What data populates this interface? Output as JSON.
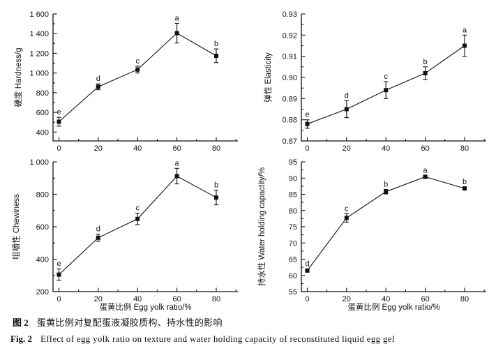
{
  "figure": {
    "caption_zh_label": "图 2",
    "caption_zh": "蛋黄比例对复配蛋液凝胶质构、持水性的影响",
    "caption_en_label": "Fig. 2",
    "caption_en": "Effect of egg yolk ratio on texture and water holding capacity of reconstituted liquid egg gel"
  },
  "chart_data": [
    {
      "id": "hardness",
      "type": "line",
      "title": "",
      "ylabel": "硬度 Hardness/g",
      "xlabel": "",
      "x": [
        0,
        20,
        40,
        60,
        80
      ],
      "values": [
        505,
        860,
        1035,
        1405,
        1175
      ],
      "errors": [
        45,
        30,
        35,
        100,
        70
      ],
      "point_labels": [
        "e",
        "d",
        "c",
        "a",
        "b"
      ],
      "xlim": [
        -3,
        91
      ],
      "ylim": [
        310,
        1600
      ],
      "xticks": [
        0,
        20,
        40,
        60,
        80
      ],
      "xticks_minor": [
        10,
        30,
        50,
        70,
        90
      ],
      "yticks": [
        400,
        600,
        800,
        1000,
        1200,
        1400,
        1600
      ],
      "ytick_labels": [
        "400",
        "600",
        "800",
        "1 000",
        "1 200",
        "1 400",
        "1 600"
      ],
      "yticks_minor": [
        500,
        700,
        900,
        1100,
        1300,
        1500
      ],
      "marker": "square",
      "color": "#111111",
      "grid": false,
      "legend": null
    },
    {
      "id": "elasticity",
      "type": "line",
      "title": "",
      "ylabel": "弹性 Elasticity",
      "xlabel": "",
      "x": [
        0,
        20,
        40,
        60,
        80
      ],
      "values": [
        0.878,
        0.885,
        0.894,
        0.902,
        0.915
      ],
      "errors": [
        0.002,
        0.004,
        0.004,
        0.003,
        0.005
      ],
      "point_labels": [
        "e",
        "d",
        "c",
        "b",
        "a"
      ],
      "xlim": [
        -3,
        91
      ],
      "ylim": [
        0.87,
        0.93
      ],
      "xticks": [
        0,
        20,
        40,
        60,
        80
      ],
      "xticks_minor": [
        10,
        30,
        50,
        70,
        90
      ],
      "yticks": [
        0.87,
        0.88,
        0.89,
        0.9,
        0.91,
        0.92,
        0.93
      ],
      "ytick_labels": [
        "0.87",
        "0.88",
        "0.89",
        "0.90",
        "0.91",
        "0.92",
        "0.93"
      ],
      "yticks_minor": [
        0.875,
        0.885,
        0.895,
        0.905,
        0.915,
        0.925
      ],
      "marker": "square",
      "color": "#111111",
      "grid": false,
      "legend": null
    },
    {
      "id": "chewiness",
      "type": "line",
      "title": "",
      "ylabel": "咀嚼性 Chewiness",
      "xlabel": "蛋黄比例 Egg yolk ratio/%",
      "x": [
        0,
        20,
        40,
        60,
        80
      ],
      "values": [
        305,
        532,
        648,
        912,
        780
      ],
      "errors": [
        35,
        22,
        35,
        48,
        45
      ],
      "point_labels": [
        "e",
        "d",
        "c",
        "a",
        "b"
      ],
      "xlim": [
        -3,
        91
      ],
      "ylim": [
        200,
        1000
      ],
      "xticks": [
        0,
        20,
        40,
        60,
        80
      ],
      "xticks_minor": [
        10,
        30,
        50,
        70,
        90
      ],
      "yticks": [
        200,
        400,
        600,
        800,
        1000
      ],
      "ytick_labels": [
        "200",
        "400",
        "600",
        "800",
        "1 000"
      ],
      "yticks_minor": [
        300,
        500,
        700,
        900
      ],
      "marker": "square",
      "color": "#111111",
      "grid": false,
      "legend": null
    },
    {
      "id": "water-holding-capacity",
      "type": "line",
      "title": "",
      "ylabel": "持水性 Water holding capactity/%",
      "xlabel": "蛋黄比例 Egg yolk ratio/%",
      "x": [
        0,
        20,
        40,
        60,
        80
      ],
      "values": [
        61.5,
        77.7,
        85.8,
        90.4,
        86.8
      ],
      "errors": [
        0.5,
        1.3,
        0.7,
        0.4,
        0.5
      ],
      "point_labels": [
        "d",
        "c",
        "b",
        "a",
        "b"
      ],
      "xlim": [
        -3,
        91
      ],
      "ylim": [
        55,
        95
      ],
      "xticks": [
        0,
        20,
        40,
        60,
        80
      ],
      "xticks_minor": [
        10,
        30,
        50,
        70,
        90
      ],
      "yticks": [
        55,
        60,
        65,
        70,
        75,
        80,
        85,
        90,
        95
      ],
      "ytick_labels": [
        "55",
        "60",
        "65",
        "70",
        "75",
        "80",
        "85",
        "90",
        "95"
      ],
      "yticks_minor": [
        57.5,
        62.5,
        67.5,
        72.5,
        77.5,
        82.5,
        87.5,
        92.5
      ],
      "marker": "square",
      "color": "#111111",
      "grid": false,
      "legend": null
    }
  ]
}
